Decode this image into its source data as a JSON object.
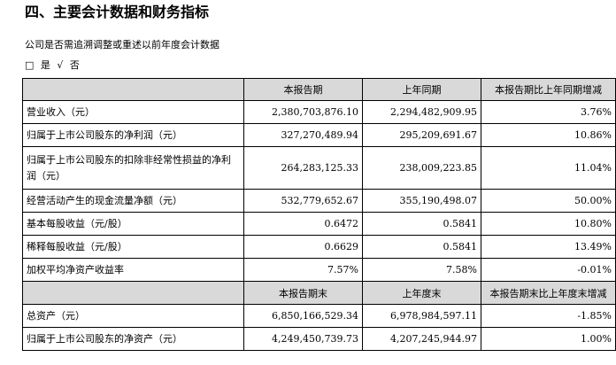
{
  "section_title": "四、主要会计数据和财务指标",
  "question": "公司是否需追溯调整或重述以前年度会计数据",
  "answer": {
    "box": "□",
    "yes": "是",
    "check": "√",
    "no": "否"
  },
  "table": {
    "header1": [
      "",
      "本报告期",
      "上年同期",
      "本报告期比上年同期增减"
    ],
    "rows1": [
      [
        "营业收入（元）",
        "2,380,703,876.10",
        "2,294,482,909.95",
        "3.76%"
      ],
      [
        "归属于上市公司股东的净利润（元）",
        "327,270,489.94",
        "295,209,691.67",
        "10.86%"
      ],
      [
        "归属于上市公司股东的扣除非经常性损益的净利润（元）",
        "264,283,125.33",
        "238,009,223.85",
        "11.04%"
      ],
      [
        "经营活动产生的现金流量净额（元）",
        "532,779,652.67",
        "355,190,498.07",
        "50.00%"
      ],
      [
        "基本每股收益（元/股）",
        "0.6472",
        "0.5841",
        "10.80%"
      ],
      [
        "稀释每股收益（元/股）",
        "0.6629",
        "0.5841",
        "13.49%"
      ],
      [
        "加权平均净资产收益率",
        "7.57%",
        "7.58%",
        "-0.01%"
      ]
    ],
    "header2": [
      "",
      "本报告期末",
      "上年度末",
      "本报告期末比上年度末增减"
    ],
    "rows2": [
      [
        "总资产（元）",
        "6,850,166,529.34",
        "6,978,984,597.11",
        "-1.85%"
      ],
      [
        "归属于上市公司股东的净资产（元）",
        "4,249,450,739.73",
        "4,207,245,944.97",
        "1.00%"
      ]
    ]
  }
}
